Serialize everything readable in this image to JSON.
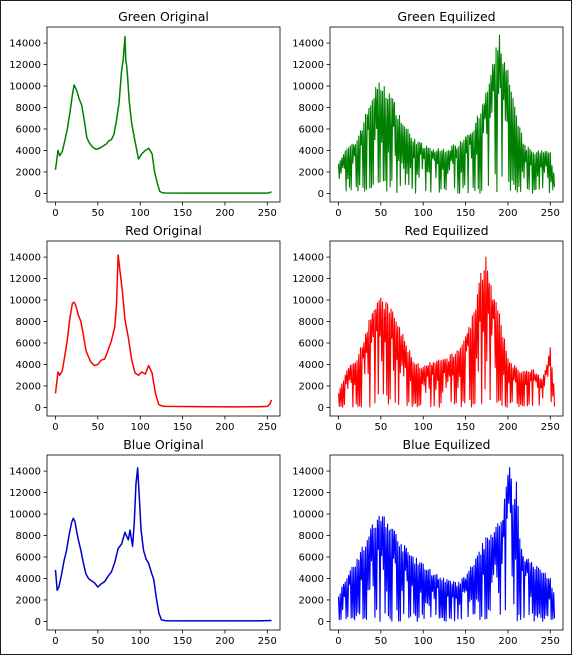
{
  "chart_data": [
    {
      "type": "line",
      "title": "Green Original",
      "color": "#008000",
      "xlim": [
        -10,
        265
      ],
      "ylim": [
        -800,
        15500
      ],
      "xticks": [
        0,
        50,
        100,
        150,
        200,
        250
      ],
      "yticks": [
        0,
        2000,
        4000,
        6000,
        8000,
        10000,
        12000,
        14000
      ],
      "series": [
        {
          "x": [
            0,
            3,
            5,
            8,
            11,
            14,
            17,
            20,
            22,
            25,
            28,
            31,
            34,
            37,
            40,
            44,
            48,
            52,
            56,
            60,
            63,
            66,
            69,
            72,
            75,
            78,
            80,
            82,
            83,
            84,
            85,
            87,
            90,
            94,
            98,
            102,
            106,
            110,
            114,
            117,
            120,
            123,
            126,
            130,
            150,
            180,
            210,
            240,
            250,
            252,
            255
          ],
          "y": [
            2200,
            4000,
            3500,
            3900,
            4900,
            6000,
            7500,
            9200,
            10100,
            9600,
            8800,
            8200,
            6800,
            5200,
            4700,
            4300,
            4100,
            4200,
            4400,
            4600,
            4900,
            5000,
            5500,
            6800,
            8400,
            11400,
            12500,
            14600,
            12400,
            11900,
            11000,
            8600,
            6500,
            4800,
            3200,
            3700,
            4000,
            4200,
            3700,
            2000,
            1000,
            200,
            60,
            40,
            30,
            30,
            30,
            30,
            30,
            50,
            150
          ]
        }
      ]
    },
    {
      "type": "line",
      "title": "Green Equilized",
      "color": "#008000",
      "xlim": [
        -10,
        265
      ],
      "ylim": [
        -800,
        15500
      ],
      "xticks": [
        0,
        50,
        100,
        150,
        200,
        250
      ],
      "yticks": [
        0,
        2000,
        4000,
        6000,
        8000,
        10000,
        12000,
        14000
      ],
      "series": [
        {
          "x": [
            0,
            10,
            20,
            30,
            40,
            45,
            50,
            55,
            60,
            70,
            80,
            90,
            100,
            110,
            120,
            130,
            140,
            150,
            160,
            170,
            180,
            185,
            190,
            195,
            200,
            210,
            220,
            230,
            240,
            250,
            255
          ],
          "y": [
            3000,
            4100,
            4700,
            6700,
            9000,
            9800,
            10100,
            9600,
            9300,
            7500,
            6000,
            5000,
            4400,
            4100,
            4000,
            4200,
            4500,
            5400,
            6200,
            8000,
            11000,
            12700,
            14600,
            12500,
            11200,
            7000,
            4400,
            3800,
            3900,
            3700,
            1400
          ]
        }
      ],
      "style": "comb"
    },
    {
      "type": "line",
      "title": "Red Original",
      "color": "#ff0000",
      "xlim": [
        -10,
        265
      ],
      "ylim": [
        -800,
        15500
      ],
      "xticks": [
        0,
        50,
        100,
        150,
        200,
        250
      ],
      "yticks": [
        0,
        2000,
        4000,
        6000,
        8000,
        10000,
        12000,
        14000
      ],
      "series": [
        {
          "x": [
            0,
            3,
            5,
            8,
            11,
            14,
            17,
            20,
            22,
            24,
            27,
            30,
            33,
            36,
            39,
            42,
            46,
            50,
            54,
            58,
            62,
            66,
            70,
            72,
            73,
            74,
            76,
            79,
            82,
            86,
            90,
            94,
            98,
            102,
            106,
            110,
            114,
            118,
            122,
            126,
            130,
            150,
            180,
            210,
            240,
            250,
            253,
            255
          ],
          "y": [
            1300,
            3300,
            3000,
            3400,
            4800,
            6300,
            8300,
            9700,
            9800,
            9500,
            8600,
            8000,
            6700,
            5300,
            4700,
            4200,
            3900,
            4000,
            4400,
            4500,
            5300,
            6200,
            7500,
            9500,
            12000,
            14200,
            12800,
            10800,
            8200,
            6500,
            4400,
            3200,
            3000,
            3300,
            3100,
            3900,
            3200,
            1300,
            250,
            120,
            100,
            80,
            60,
            50,
            60,
            100,
            300,
            700
          ]
        }
      ]
    },
    {
      "type": "line",
      "title": "Red Equilized",
      "color": "#ff0000",
      "xlim": [
        -10,
        265
      ],
      "ylim": [
        -800,
        15500
      ],
      "xticks": [
        0,
        50,
        100,
        150,
        200,
        250
      ],
      "yticks": [
        0,
        2000,
        4000,
        6000,
        8000,
        10000,
        12000,
        14000
      ],
      "series": [
        {
          "x": [
            0,
            10,
            20,
            30,
            40,
            45,
            50,
            55,
            60,
            70,
            80,
            90,
            100,
            110,
            120,
            130,
            140,
            150,
            160,
            165,
            170,
            175,
            180,
            190,
            200,
            210,
            220,
            230,
            240,
            250,
            255
          ],
          "y": [
            1400,
            3500,
            4200,
            6500,
            9200,
            9700,
            9800,
            9700,
            9300,
            7800,
            5800,
            4200,
            3700,
            4100,
            4300,
            4600,
            5200,
            6600,
            8800,
            11000,
            12800,
            14200,
            11200,
            8400,
            4600,
            3600,
            3300,
            3400,
            2600,
            5400,
            1500
          ]
        }
      ],
      "style": "comb"
    },
    {
      "type": "line",
      "title": "Blue Original",
      "color": "#0000cc",
      "xlim": [
        -10,
        265
      ],
      "ylim": [
        -800,
        15500
      ],
      "xticks": [
        0,
        50,
        100,
        150,
        200,
        250
      ],
      "yticks": [
        0,
        2000,
        4000,
        6000,
        8000,
        10000,
        12000,
        14000
      ],
      "series": [
        {
          "x": [
            0,
            2,
            4,
            7,
            10,
            13,
            16,
            19,
            21,
            23,
            25,
            27,
            30,
            33,
            36,
            39,
            42,
            46,
            50,
            54,
            58,
            62,
            66,
            70,
            74,
            78,
            82,
            86,
            88,
            91,
            93,
            95,
            97,
            99,
            101,
            104,
            107,
            110,
            113,
            116,
            119,
            122,
            125,
            130,
            150,
            180,
            210,
            240,
            255
          ],
          "y": [
            4800,
            2900,
            3200,
            4300,
            5600,
            6600,
            8000,
            9200,
            9600,
            9300,
            8400,
            7600,
            6600,
            5400,
            4400,
            4000,
            3800,
            3600,
            3200,
            3500,
            3700,
            4200,
            4600,
            5500,
            6800,
            7200,
            8300,
            7600,
            8500,
            7000,
            9200,
            12800,
            14300,
            11500,
            8500,
            6600,
            5800,
            5400,
            4600,
            3900,
            2200,
            800,
            150,
            60,
            50,
            50,
            50,
            50,
            80
          ]
        }
      ]
    },
    {
      "type": "line",
      "title": "Blue Equilized",
      "color": "#0000ff",
      "xlim": [
        -10,
        265
      ],
      "ylim": [
        -800,
        15500
      ],
      "xticks": [
        0,
        50,
        100,
        150,
        200,
        250
      ],
      "yticks": [
        0,
        2000,
        4000,
        6000,
        8000,
        10000,
        12000,
        14000
      ],
      "series": [
        {
          "x": [
            0,
            10,
            20,
            30,
            40,
            45,
            50,
            55,
            60,
            70,
            80,
            90,
            100,
            110,
            120,
            130,
            140,
            150,
            160,
            170,
            180,
            190,
            195,
            200,
            203,
            206,
            210,
            215,
            220,
            230,
            240,
            250,
            255
          ],
          "y": [
            2400,
            4300,
            5500,
            7000,
            8700,
            9400,
            9700,
            9600,
            9000,
            7700,
            6600,
            5800,
            5200,
            4600,
            4100,
            3700,
            3500,
            4100,
            5500,
            7000,
            8300,
            9000,
            10500,
            14200,
            14300,
            11000,
            13200,
            7000,
            6000,
            5200,
            4700,
            4000,
            2300
          ]
        }
      ],
      "style": "comb"
    }
  ]
}
